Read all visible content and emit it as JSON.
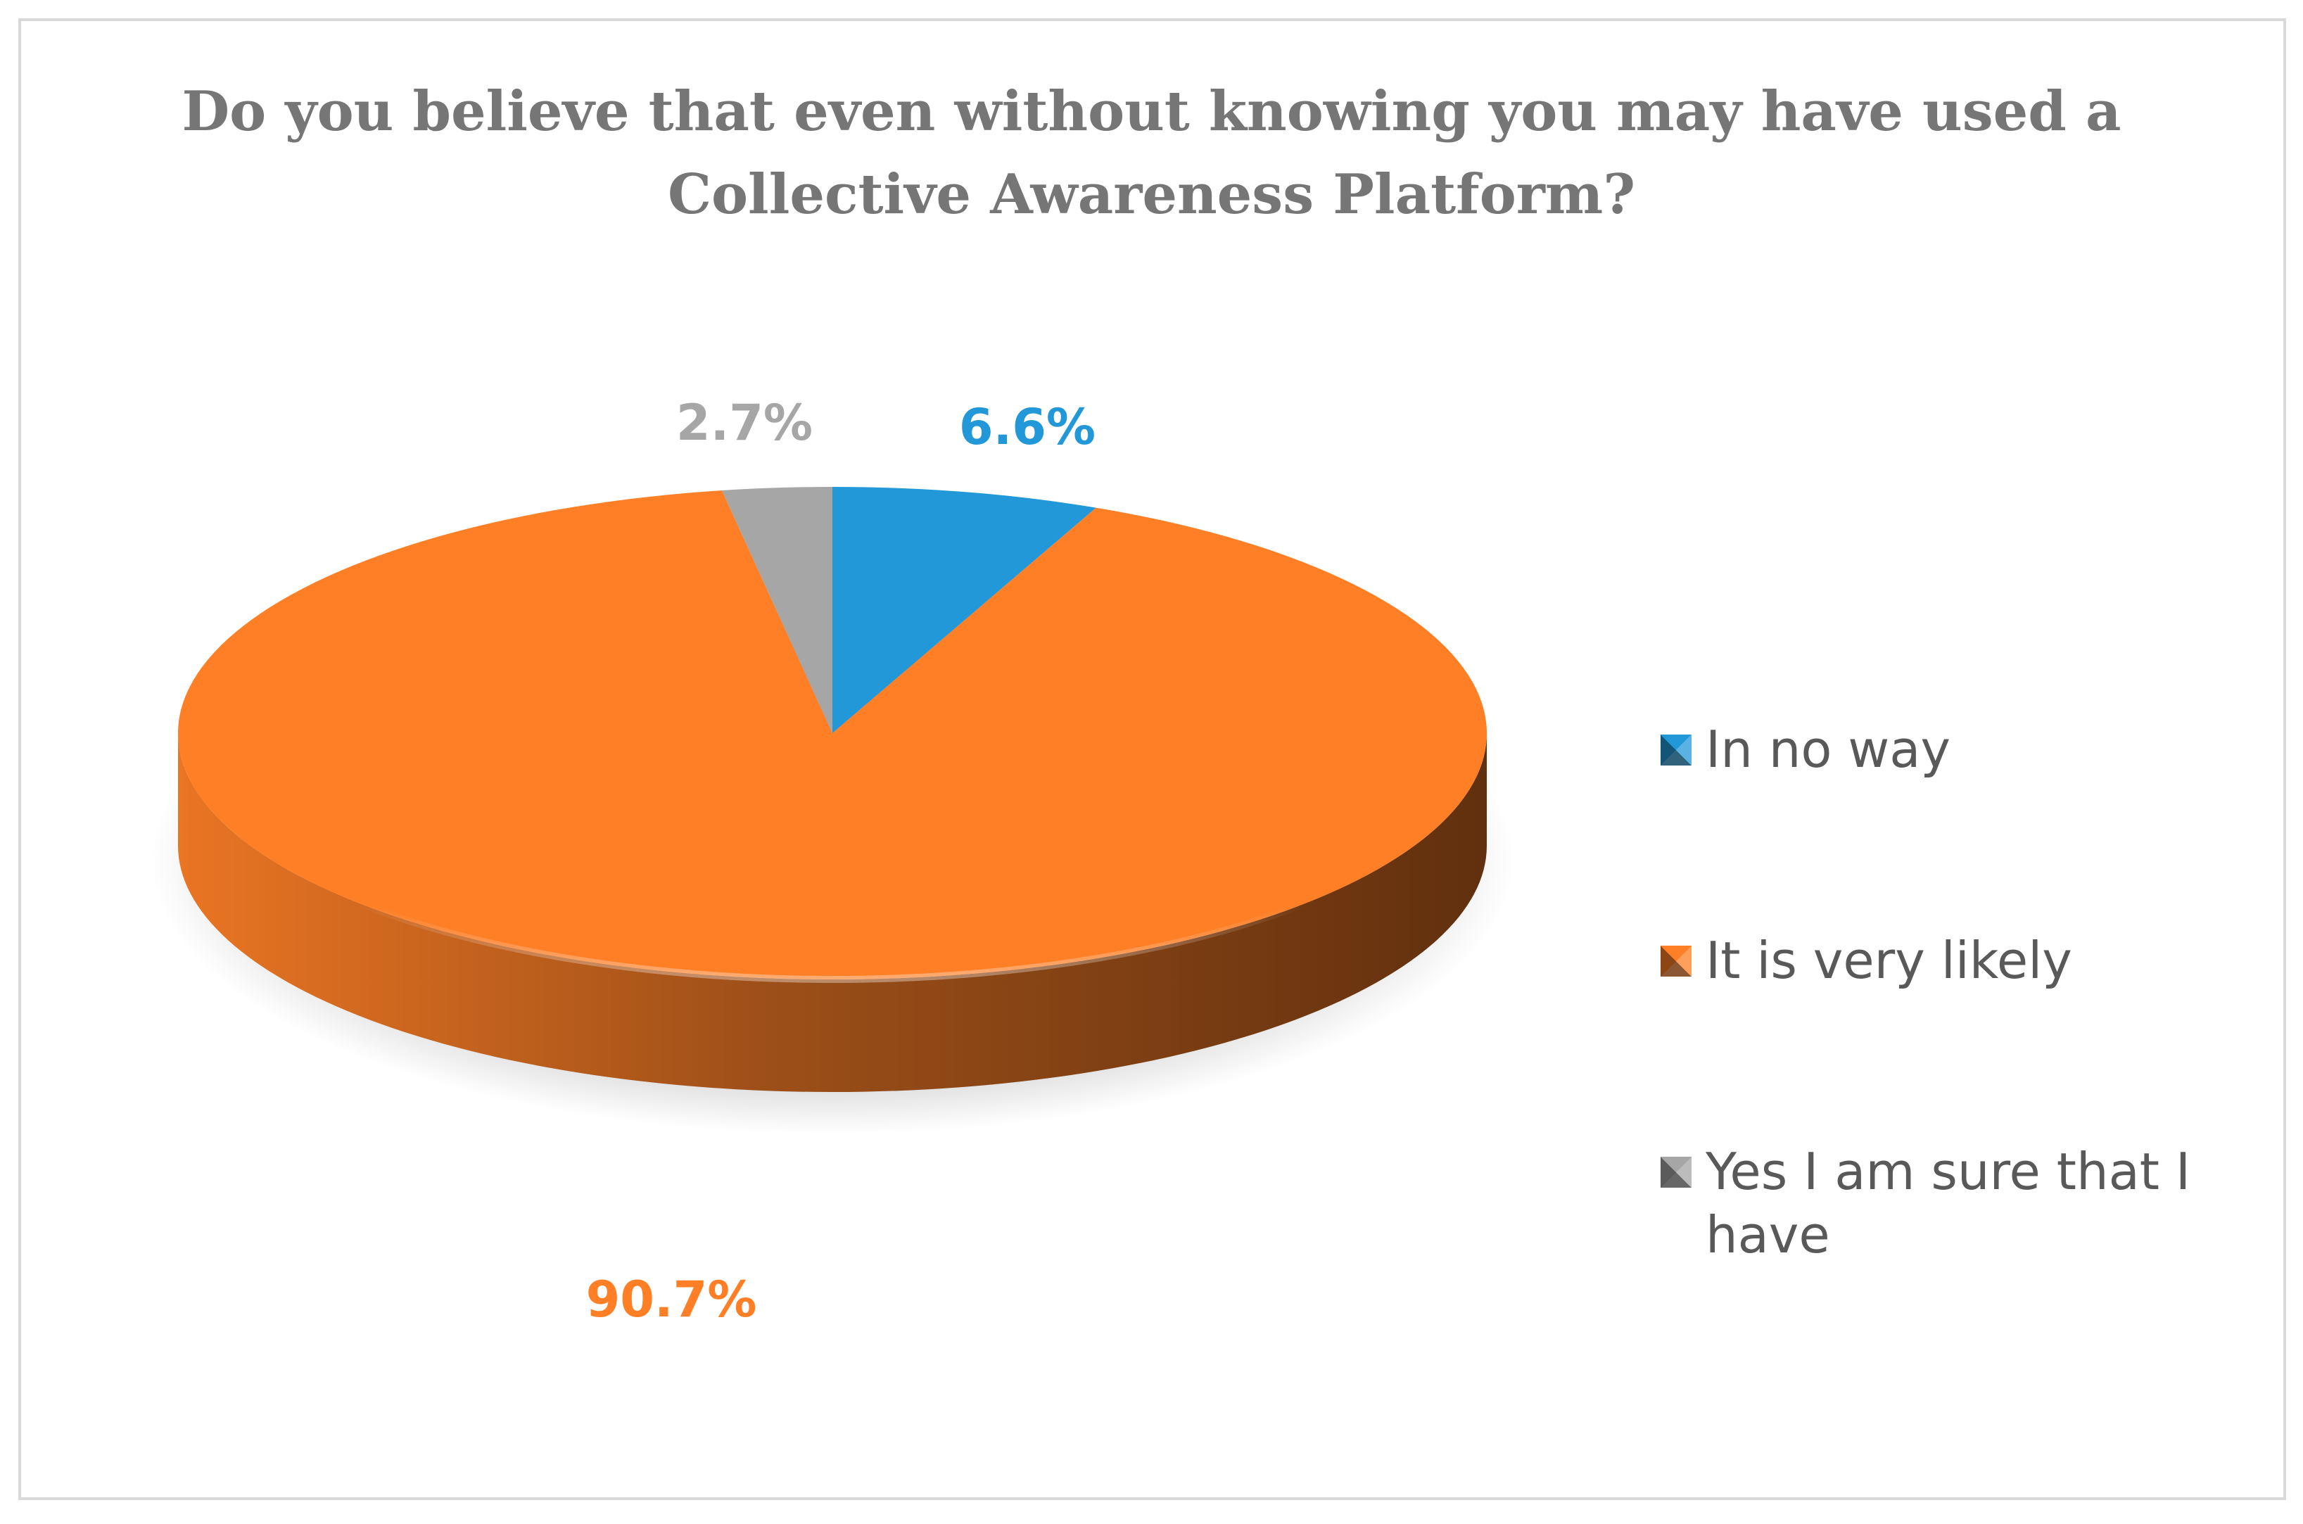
{
  "chart_data": {
    "type": "pie",
    "title": "Do you believe that even without knowing you may have used a Collective Awareness Platform?",
    "title_lines": [
      "Do you believe that even without knowing you may have used a",
      "Collective Awareness Platform?"
    ],
    "slices": [
      {
        "label": "In no way",
        "value": 6.6,
        "display": "6.6%",
        "color": "#2298D8"
      },
      {
        "label": "It is very likely",
        "value": 90.7,
        "display": "90.7%",
        "color": "#FE7F26"
      },
      {
        "label": "Yes I am sure that I have",
        "value": 2.7,
        "display": "2.7%",
        "color": "#A6A6A6"
      }
    ],
    "legend_position": "right",
    "style": "3d"
  }
}
